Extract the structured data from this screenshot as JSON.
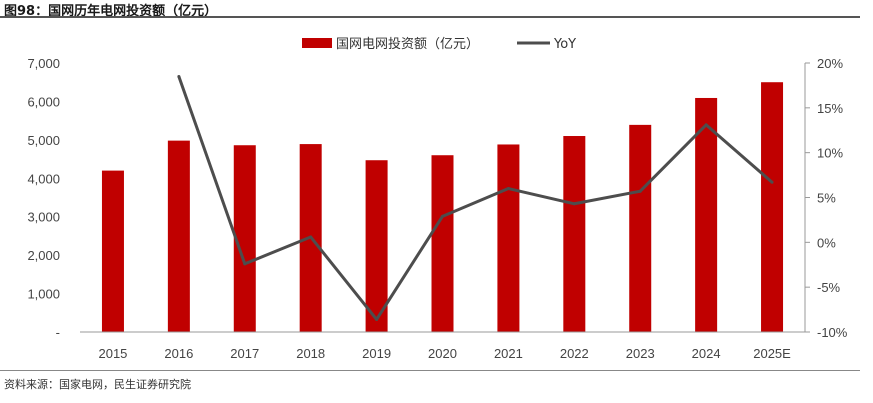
{
  "figure": {
    "title": "图98：国网历年电网投资额（亿元）",
    "source": "资料来源：国家电网，民生证券研究院"
  },
  "colors": {
    "bar": "#c00000",
    "line": "#4d4d4d",
    "axis": "#999999"
  },
  "chart_data": {
    "type": "bar",
    "categories": [
      "2015",
      "2016",
      "2017",
      "2018",
      "2019",
      "2020",
      "2021",
      "2022",
      "2023",
      "2024",
      "2025E"
    ],
    "series": [
      {
        "name": "国网电网投资额（亿元）",
        "type": "bar",
        "axis": "left",
        "values": [
          4200,
          4980,
          4860,
          4890,
          4470,
          4600,
          4880,
          5100,
          5390,
          6090,
          6500
        ]
      },
      {
        "name": "YoY",
        "type": "line",
        "axis": "right",
        "values": [
          null,
          18.5,
          -2.4,
          0.6,
          -8.6,
          2.9,
          6.0,
          4.3,
          5.7,
          13.1,
          6.7
        ]
      }
    ],
    "y_left": {
      "ticks": [
        "-",
        "1,000",
        "2,000",
        "3,000",
        "4,000",
        "5,000",
        "6,000",
        "7,000"
      ],
      "ylim": [
        0,
        7000
      ]
    },
    "y_right": {
      "ticks": [
        "-10%",
        "-5%",
        "0%",
        "5%",
        "10%",
        "15%",
        "20%"
      ],
      "ylim": [
        -10,
        20
      ]
    },
    "grid": false,
    "legend_position": "top-center"
  }
}
